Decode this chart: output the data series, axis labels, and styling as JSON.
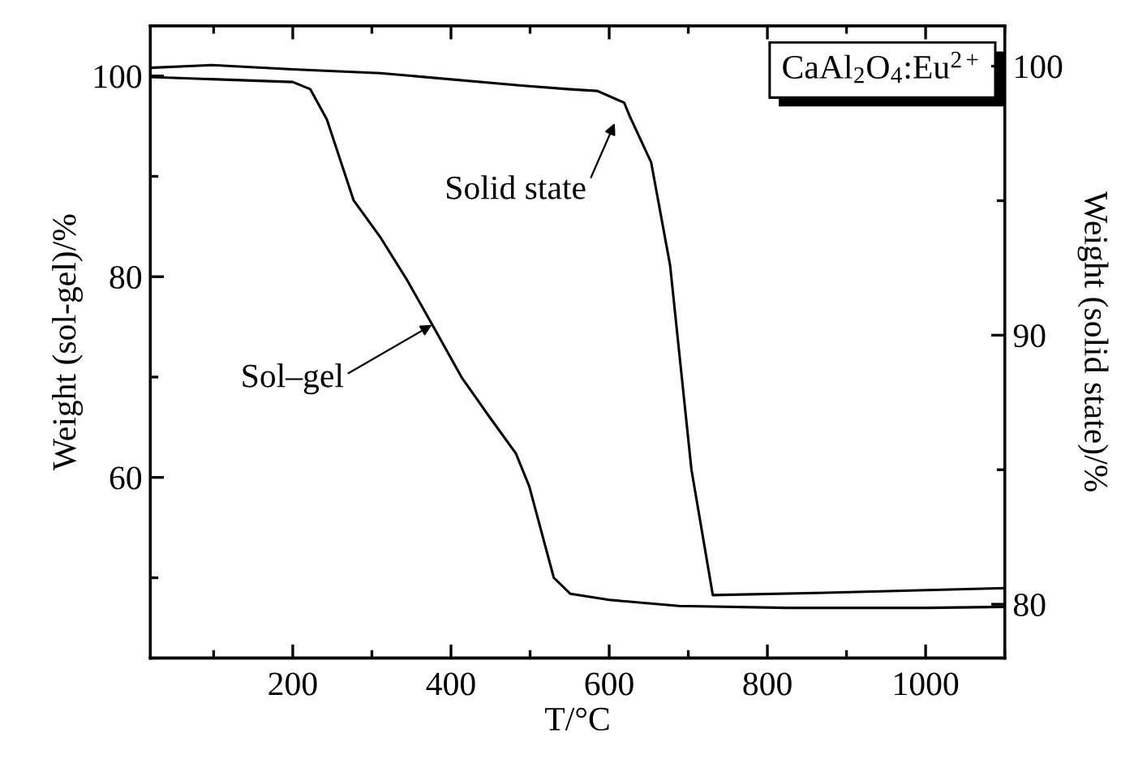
{
  "chart_data": {
    "type": "line",
    "xlabel": "T/°C",
    "ylabel": "Weight (sol-gel)/%",
    "y2label": "Weight (solid state)/%",
    "xlim": [
      20,
      1100
    ],
    "xticks": [
      {
        "value": 100,
        "label": null
      },
      200,
      {
        "value": 300,
        "label": null
      },
      400,
      {
        "value": 500,
        "label": null
      },
      600,
      {
        "value": 700,
        "label": null
      },
      800,
      {
        "value": 900,
        "label": null
      },
      1000,
      {
        "value": 1100,
        "label": null
      }
    ],
    "ylim": [
      42,
      105
    ],
    "yticks": [
      {
        "value": 50,
        "label": null
      },
      60,
      {
        "value": 70,
        "label": null
      },
      80,
      {
        "value": 90,
        "label": null
      },
      100
    ],
    "y2lim": [
      78,
      101.5
    ],
    "y2ticks": [
      80,
      {
        "value": 85,
        "label": null
      },
      90,
      {
        "value": 95,
        "label": null
      },
      100
    ],
    "grid": false,
    "marker": "none",
    "line_style": "solid",
    "series": [
      {
        "color": "#000000",
        "x": [
          20,
          200,
          222,
          243,
          277,
          311,
          345,
          380,
          414,
          448,
          482,
          499,
          517,
          530,
          551,
          600,
          688,
          825,
          1000,
          1100
        ],
        "values": [
          99.9,
          99.4,
          98.7,
          95.7,
          87.6,
          83.9,
          79.6,
          74.7,
          69.9,
          66.1,
          62.4,
          59.1,
          53.8,
          50.0,
          48.4,
          47.8,
          47.2,
          47.0,
          47.0,
          47.1
        ]
      },
      {
        "color": "#000000",
        "axis": "y2",
        "x": [
          20,
          98,
          200,
          311,
          489,
          551,
          585,
          619,
          626,
          653,
          677,
          704,
          731,
          892,
          1100
        ],
        "values": [
          99.94,
          100.04,
          99.88,
          99.74,
          99.28,
          99.14,
          99.08,
          98.64,
          98.14,
          96.43,
          92.6,
          85.0,
          80.34,
          80.44,
          80.6
        ]
      }
    ],
    "annotations": [
      {
        "text": "Sol–gel",
        "x": 376,
        "y": 75.2
      },
      {
        "text": "Solid state",
        "x": 607,
        "y": 97.88
      },
      "CaAl$_{2}$O$_{4}$:Eu$^{2+}$"
    ]
  }
}
